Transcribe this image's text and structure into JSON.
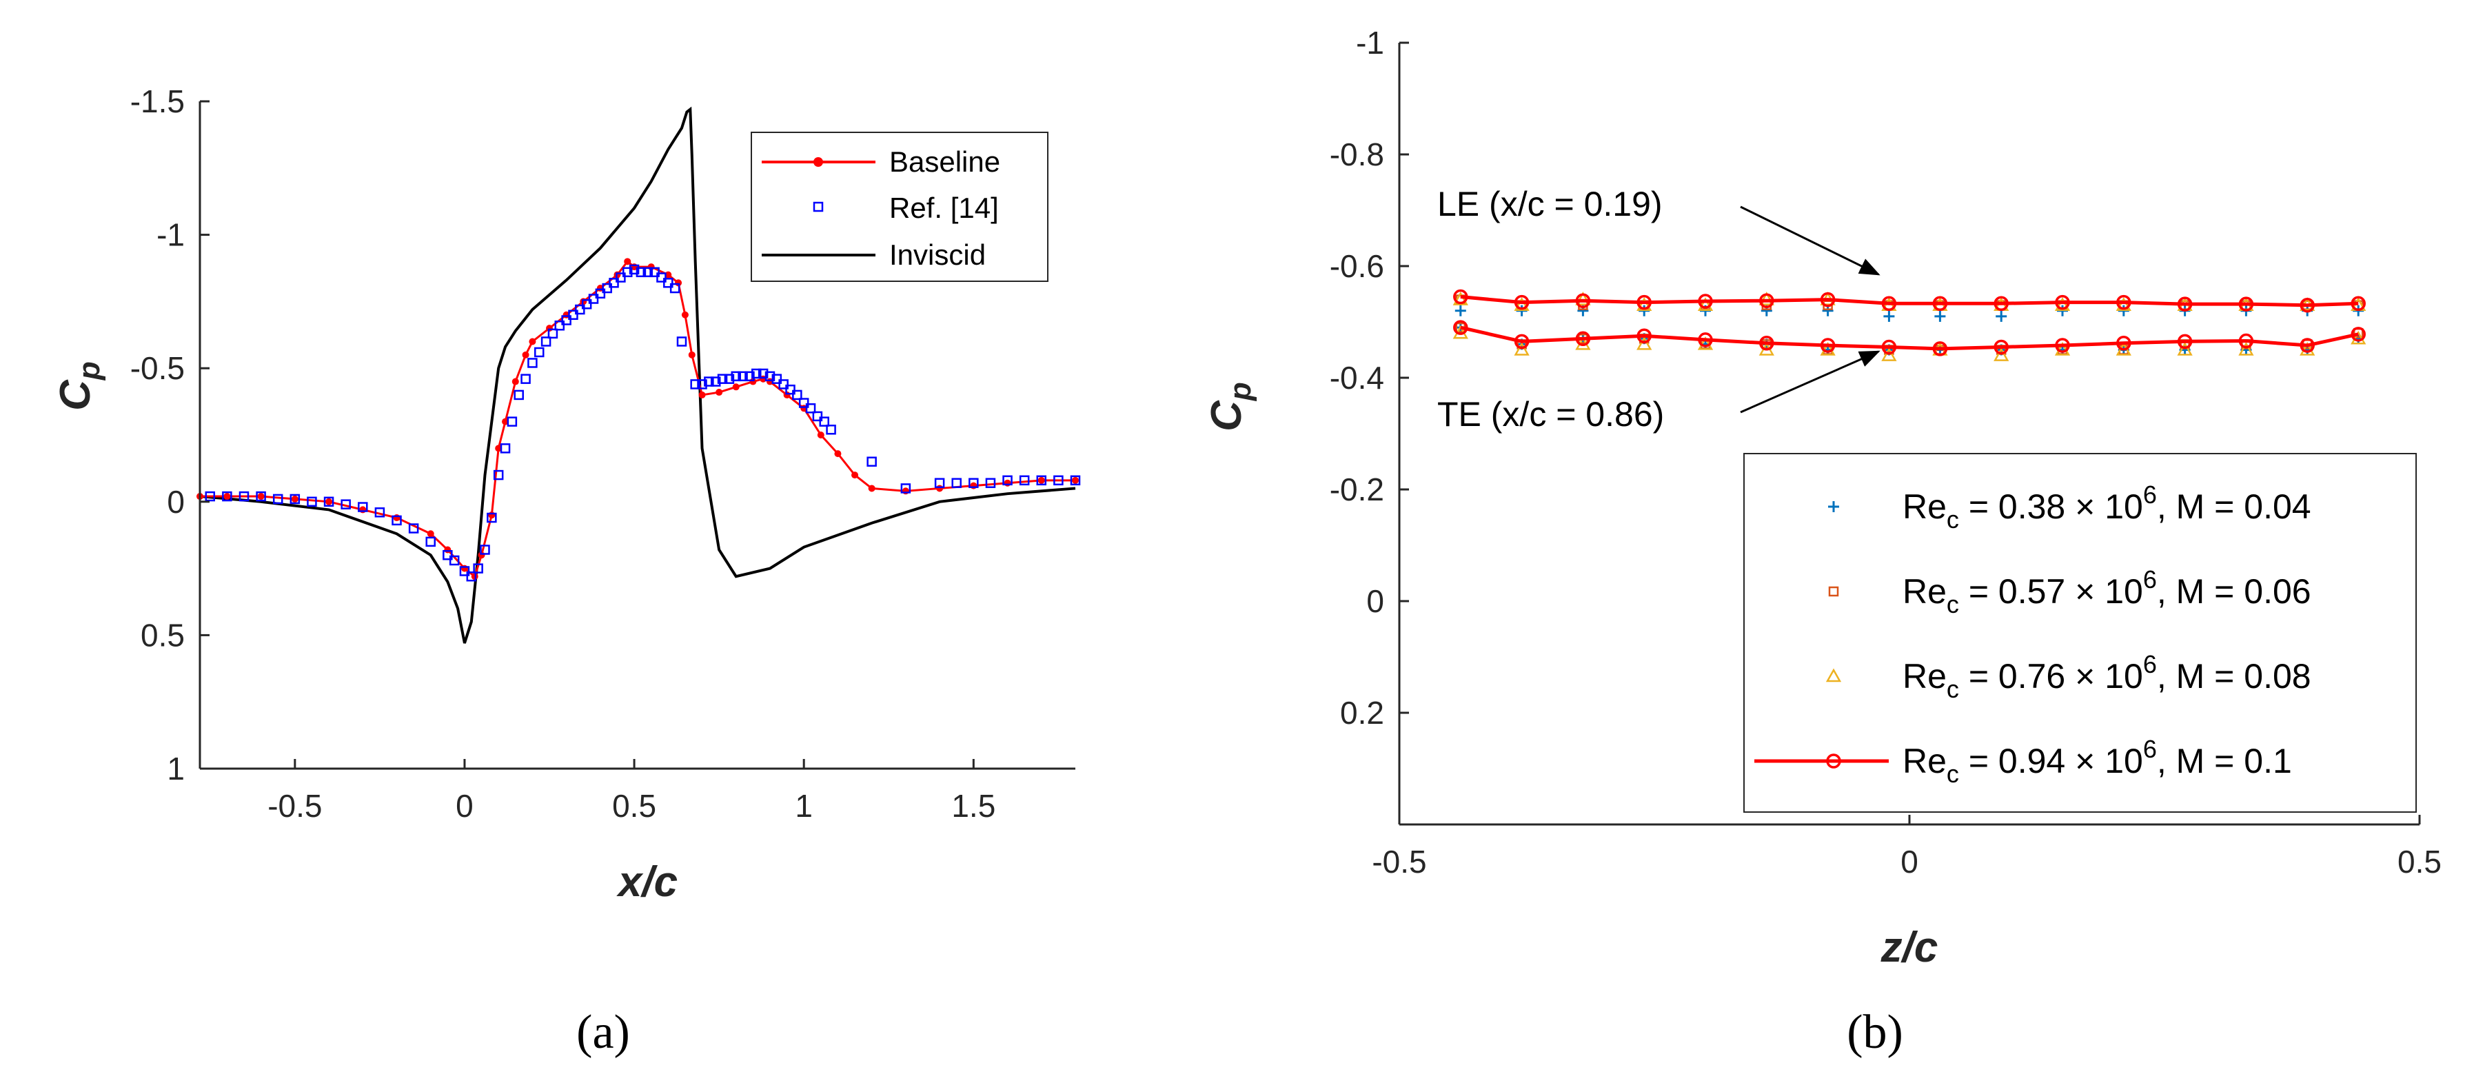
{
  "colors": {
    "baseline": "#ff0000",
    "ref": "#0000ff",
    "inviscid": "#000000",
    "s1": "#0072bd",
    "s2": "#d95319",
    "s3": "#edb120",
    "s4": "#ff0000"
  },
  "chart_data": [
    {
      "type": "line",
      "panel_label": "(a)",
      "xlabel": "x/c",
      "ylabel_main": "C",
      "ylabel_sub": "p",
      "xlim": [
        -0.78,
        1.8
      ],
      "ylim": [
        -1.5,
        1.0
      ],
      "y_reversed": true,
      "xticks": [
        -0.5,
        0,
        0.5,
        1,
        1.5
      ],
      "xtick_labels": [
        "-0.5",
        "0",
        "0.5",
        "1",
        "1.5"
      ],
      "yticks": [
        -1.5,
        -1,
        -0.5,
        0,
        0.5,
        1
      ],
      "ytick_labels": [
        "-1.5",
        "-1",
        "-0.5",
        "0",
        "0.5",
        "1"
      ],
      "legend": [
        "Baseline",
        "Ref. [14]",
        "Inviscid"
      ],
      "series": [
        {
          "name": "Baseline",
          "style": "line-dot",
          "x": [
            -0.78,
            -0.7,
            -0.6,
            -0.5,
            -0.4,
            -0.3,
            -0.2,
            -0.1,
            -0.05,
            0.0,
            0.03,
            0.05,
            0.08,
            0.1,
            0.12,
            0.15,
            0.18,
            0.2,
            0.25,
            0.3,
            0.35,
            0.4,
            0.45,
            0.48,
            0.5,
            0.55,
            0.6,
            0.63,
            0.65,
            0.67,
            0.7,
            0.75,
            0.8,
            0.85,
            0.88,
            0.9,
            0.95,
            1.0,
            1.05,
            1.1,
            1.15,
            1.2,
            1.3,
            1.4,
            1.5,
            1.6,
            1.7,
            1.8
          ],
          "y": [
            -0.02,
            -0.02,
            -0.02,
            -0.01,
            0.0,
            0.03,
            0.06,
            0.12,
            0.18,
            0.25,
            0.28,
            0.2,
            0.05,
            -0.2,
            -0.3,
            -0.45,
            -0.55,
            -0.6,
            -0.65,
            -0.7,
            -0.75,
            -0.8,
            -0.85,
            -0.9,
            -0.88,
            -0.88,
            -0.85,
            -0.82,
            -0.7,
            -0.55,
            -0.4,
            -0.41,
            -0.43,
            -0.45,
            -0.46,
            -0.45,
            -0.4,
            -0.35,
            -0.25,
            -0.18,
            -0.1,
            -0.05,
            -0.04,
            -0.05,
            -0.06,
            -0.07,
            -0.08,
            -0.08
          ]
        },
        {
          "name": "Ref. [14]",
          "style": "square",
          "x": [
            -0.75,
            -0.7,
            -0.65,
            -0.6,
            -0.55,
            -0.5,
            -0.45,
            -0.4,
            -0.35,
            -0.3,
            -0.25,
            -0.2,
            -0.15,
            -0.1,
            -0.05,
            -0.03,
            0.0,
            0.02,
            0.04,
            0.06,
            0.08,
            0.1,
            0.12,
            0.14,
            0.16,
            0.18,
            0.2,
            0.22,
            0.24,
            0.26,
            0.28,
            0.3,
            0.32,
            0.34,
            0.36,
            0.38,
            0.4,
            0.42,
            0.44,
            0.46,
            0.48,
            0.5,
            0.52,
            0.54,
            0.56,
            0.58,
            0.6,
            0.62,
            0.64,
            0.68,
            0.7,
            0.72,
            0.74,
            0.76,
            0.78,
            0.8,
            0.82,
            0.84,
            0.86,
            0.88,
            0.9,
            0.92,
            0.94,
            0.96,
            0.98,
            1.0,
            1.02,
            1.04,
            1.06,
            1.08,
            1.2,
            1.3,
            1.4,
            1.45,
            1.5,
            1.55,
            1.6,
            1.65,
            1.7,
            1.75,
            1.8
          ],
          "y": [
            -0.02,
            -0.02,
            -0.02,
            -0.02,
            -0.01,
            -0.01,
            0.0,
            0.0,
            0.01,
            0.02,
            0.04,
            0.07,
            0.1,
            0.15,
            0.2,
            0.22,
            0.26,
            0.28,
            0.25,
            0.18,
            0.06,
            -0.1,
            -0.2,
            -0.3,
            -0.4,
            -0.46,
            -0.52,
            -0.56,
            -0.6,
            -0.63,
            -0.66,
            -0.68,
            -0.7,
            -0.72,
            -0.74,
            -0.76,
            -0.78,
            -0.8,
            -0.82,
            -0.84,
            -0.86,
            -0.87,
            -0.86,
            -0.86,
            -0.86,
            -0.84,
            -0.82,
            -0.8,
            -0.6,
            -0.44,
            -0.44,
            -0.45,
            -0.45,
            -0.46,
            -0.46,
            -0.47,
            -0.47,
            -0.47,
            -0.48,
            -0.48,
            -0.47,
            -0.46,
            -0.44,
            -0.42,
            -0.4,
            -0.37,
            -0.35,
            -0.32,
            -0.3,
            -0.27,
            -0.15,
            -0.05,
            -0.07,
            -0.07,
            -0.07,
            -0.07,
            -0.08,
            -0.08,
            -0.08,
            -0.08,
            -0.08
          ]
        },
        {
          "name": "Inviscid",
          "style": "line",
          "x": [
            -0.78,
            -0.6,
            -0.4,
            -0.2,
            -0.1,
            -0.05,
            -0.02,
            0.0,
            0.02,
            0.04,
            0.06,
            0.08,
            0.1,
            0.12,
            0.15,
            0.2,
            0.3,
            0.4,
            0.5,
            0.55,
            0.6,
            0.62,
            0.64,
            0.655,
            0.665,
            0.67,
            0.68,
            0.7,
            0.75,
            0.8,
            0.9,
            1.0,
            1.2,
            1.4,
            1.6,
            1.8
          ],
          "y": [
            -0.02,
            0.0,
            0.03,
            0.12,
            0.2,
            0.3,
            0.4,
            0.53,
            0.45,
            0.2,
            -0.1,
            -0.3,
            -0.5,
            -0.58,
            -0.64,
            -0.72,
            -0.83,
            -0.95,
            -1.1,
            -1.2,
            -1.32,
            -1.36,
            -1.4,
            -1.46,
            -1.47,
            -1.3,
            -0.9,
            -0.2,
            0.18,
            0.28,
            0.25,
            0.17,
            0.08,
            0.0,
            -0.03,
            -0.05
          ]
        }
      ]
    },
    {
      "type": "line",
      "panel_label": "(b)",
      "xlabel": "z/c",
      "ylabel_main": "C",
      "ylabel_sub": "p",
      "xlim": [
        -0.5,
        0.5
      ],
      "ylim": [
        -1.0,
        0.4
      ],
      "y_reversed": true,
      "xticks": [
        -0.5,
        0,
        0.5
      ],
      "xtick_labels": [
        "-0.5",
        "0",
        "0.5"
      ],
      "yticks": [
        -1,
        -0.8,
        -0.6,
        -0.4,
        -0.2,
        0,
        0.2
      ],
      "ytick_labels": [
        "-1",
        "-0.8",
        "-0.6",
        "-0.4",
        "-0.2",
        "0",
        "0.2"
      ],
      "annotations": {
        "le": "LE (x/c = 0.19)",
        "te": "TE (x/c = 0.86)"
      },
      "legend_labels": [
        {
          "pre": "Re",
          "sub": "c",
          "mid": " = 0.38 × 10",
          "sup": "6",
          "post": ", M = 0.04"
        },
        {
          "pre": "Re",
          "sub": "c",
          "mid": " = 0.57 × 10",
          "sup": "6",
          "post": ", M = 0.06"
        },
        {
          "pre": "Re",
          "sub": "c",
          "mid": " = 0.76 × 10",
          "sup": "6",
          "post": ", M = 0.08"
        },
        {
          "pre": "Re",
          "sub": "c",
          "mid": " = 0.94 × 10",
          "sup": "6",
          "post": ", M = 0.1"
        }
      ],
      "z": [
        -0.44,
        -0.38,
        -0.32,
        -0.26,
        -0.2,
        -0.14,
        -0.08,
        -0.02,
        0.03,
        0.09,
        0.15,
        0.21,
        0.27,
        0.33,
        0.39,
        0.44
      ],
      "series": [
        {
          "name": "Re_c = 0.38 × 10^6, M = 0.04",
          "marker": "plus",
          "le": [
            -0.52,
            -0.52,
            -0.52,
            -0.52,
            -0.52,
            -0.52,
            -0.52,
            -0.51,
            -0.51,
            -0.51,
            -0.52,
            -0.52,
            -0.52,
            -0.52,
            -0.52,
            -0.52
          ],
          "te": [
            -0.49,
            -0.46,
            -0.47,
            -0.47,
            -0.46,
            -0.46,
            -0.45,
            -0.45,
            -0.45,
            -0.45,
            -0.45,
            -0.45,
            -0.45,
            -0.45,
            -0.45,
            -0.47
          ]
        },
        {
          "name": "Re_c = 0.57 × 10^6, M = 0.06",
          "marker": "square",
          "le": [
            -0.54,
            -0.53,
            -0.53,
            -0.53,
            -0.53,
            -0.53,
            -0.53,
            -0.53,
            -0.53,
            -0.53,
            -0.53,
            -0.53,
            -0.53,
            -0.53,
            -0.53,
            -0.53
          ],
          "te": [
            -0.49,
            -0.46,
            -0.47,
            -0.47,
            -0.46,
            -0.46,
            -0.45,
            -0.45,
            -0.45,
            -0.45,
            -0.45,
            -0.45,
            -0.46,
            -0.46,
            -0.46,
            -0.48
          ]
        },
        {
          "name": "Re_c = 0.76 × 10^6, M = 0.08",
          "marker": "triangle",
          "le": [
            -0.54,
            -0.53,
            -0.54,
            -0.53,
            -0.53,
            -0.54,
            -0.54,
            -0.53,
            -0.53,
            -0.53,
            -0.53,
            -0.53,
            -0.53,
            -0.53,
            -0.53,
            -0.53
          ],
          "te": [
            -0.48,
            -0.45,
            -0.46,
            -0.46,
            -0.46,
            -0.45,
            -0.45,
            -0.44,
            -0.45,
            -0.44,
            -0.45,
            -0.45,
            -0.45,
            -0.45,
            -0.45,
            -0.47
          ]
        },
        {
          "name": "Re_c = 0.94 × 10^6, M = 0.1",
          "marker": "circle-line",
          "le": [
            -0.545,
            -0.535,
            -0.538,
            -0.535,
            -0.537,
            -0.538,
            -0.54,
            -0.533,
            -0.533,
            -0.533,
            -0.535,
            -0.535,
            -0.532,
            -0.532,
            -0.53,
            -0.533
          ],
          "te": [
            -0.49,
            -0.465,
            -0.47,
            -0.475,
            -0.468,
            -0.462,
            -0.458,
            -0.455,
            -0.452,
            -0.455,
            -0.458,
            -0.462,
            -0.465,
            -0.466,
            -0.458,
            -0.478
          ]
        }
      ]
    }
  ]
}
